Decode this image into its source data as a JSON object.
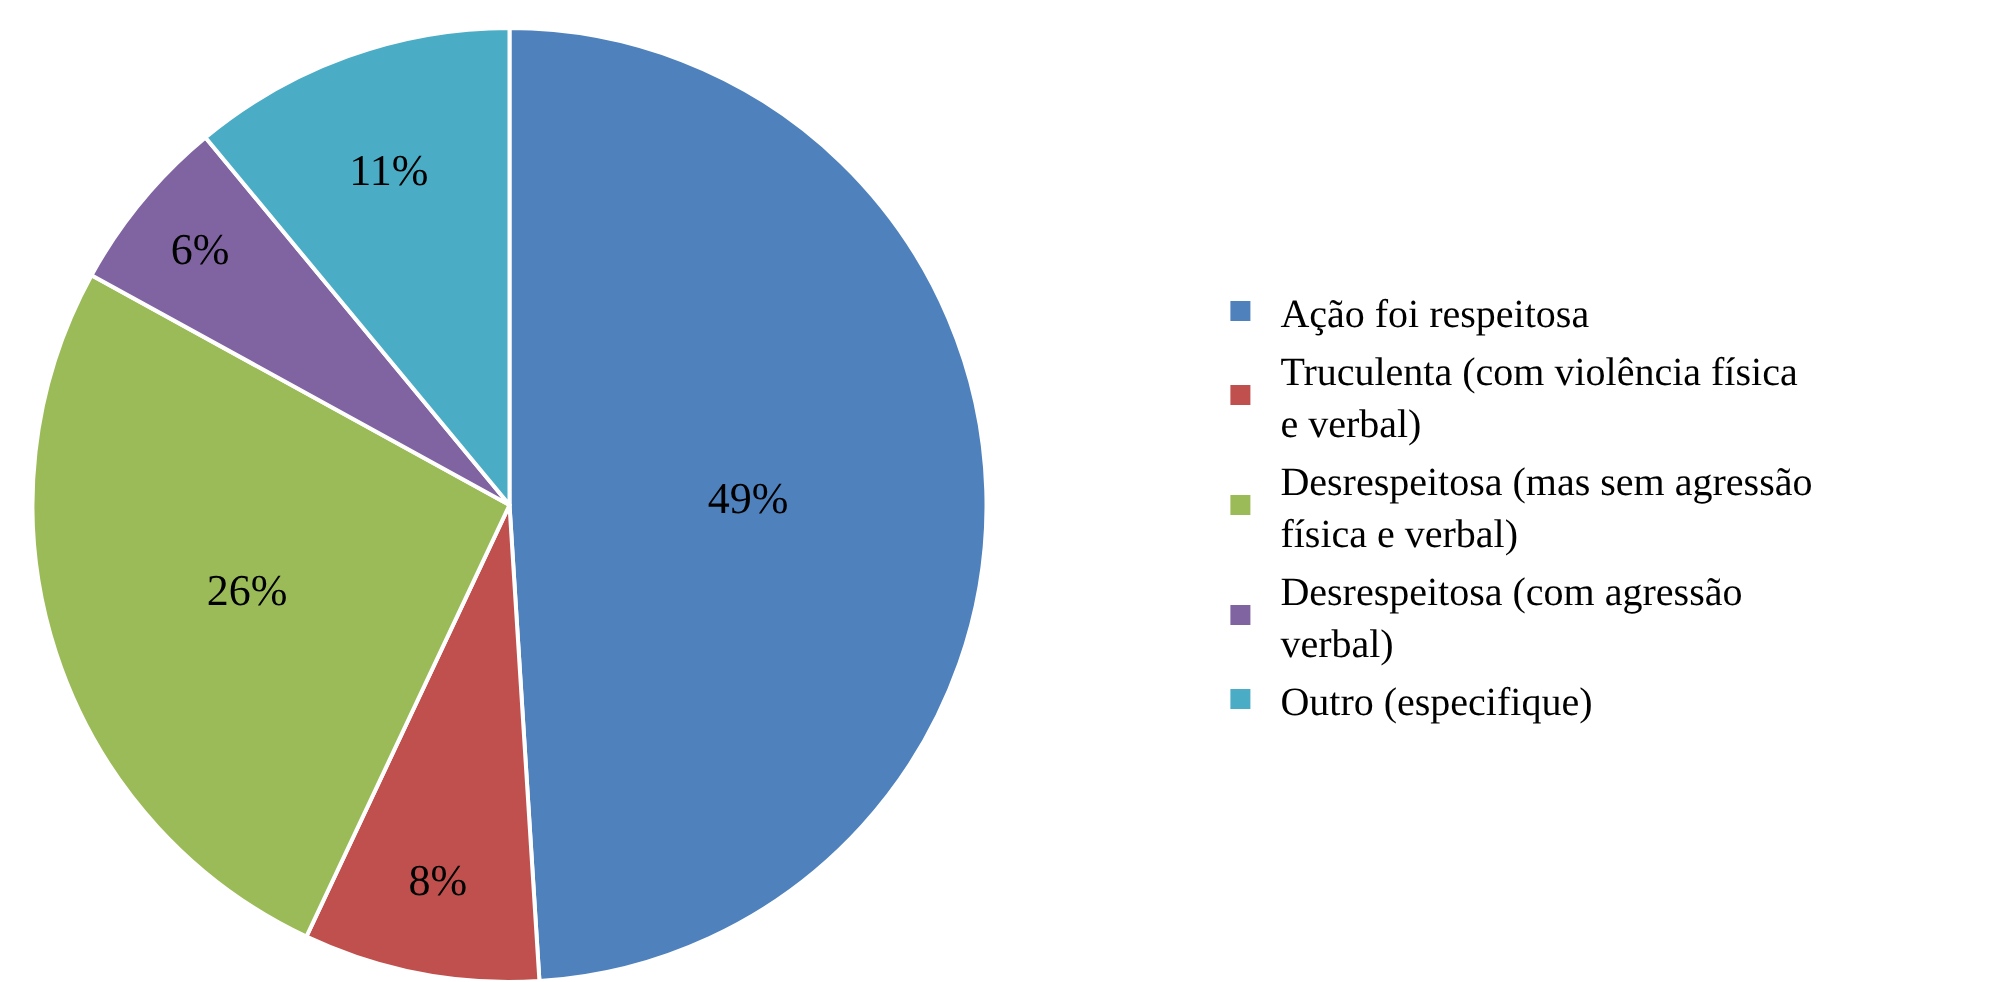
{
  "chart_data": {
    "type": "pie",
    "categories": [
      "Ação foi respeitosa",
      "Truculenta (com violência física e verbal)",
      "Desrespeitosa (mas sem agressão física e verbal)",
      "Desrespeitosa (com agressão verbal)",
      "Outro (especifique)"
    ],
    "values": [
      49,
      8,
      26,
      6,
      11
    ],
    "value_labels": [
      "49%",
      "8%",
      "26%",
      "6%",
      "11%"
    ],
    "colors": [
      "#4f81bd",
      "#c0504d",
      "#9bbb59",
      "#8064a2",
      "#4bacc6"
    ],
    "legend": "right"
  }
}
